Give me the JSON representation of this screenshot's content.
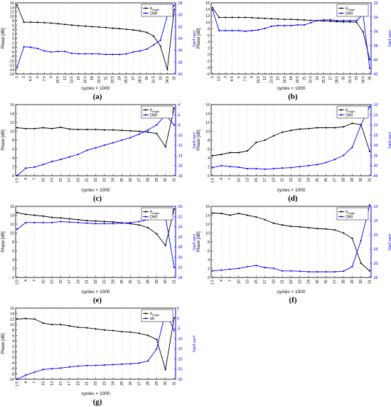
{
  "chart_data": [
    {
      "panel": "(a)",
      "type": "line",
      "xlabel": "cycles × 1000",
      "ylabel_left": "Phase [dB]",
      "ylabel_right": "DMI [dB]",
      "categories": [
        "0",
        "3",
        "4.5",
        "6",
        "7.5",
        "9",
        "10.5",
        "12",
        "13.5",
        "15",
        "16.5",
        "18",
        "19.5",
        "21",
        "22.5",
        "24",
        "25.5",
        "27",
        "28.5",
        "30",
        "31.5",
        "33",
        "34.5",
        "36"
      ],
      "ylim_left": [
        -16,
        16
      ],
      "yticks_left": [
        -16,
        -14,
        -12,
        -10,
        -8,
        -6,
        -4,
        -2,
        0,
        2,
        4,
        6,
        8,
        10,
        12,
        14,
        16
      ],
      "ylim_right": [
        -40,
        -28
      ],
      "yticks_right": [
        -40,
        -38,
        -36,
        -34,
        -32,
        -30,
        -28
      ],
      "legend_pos": "top-right",
      "series": [
        {
          "name": "θAngle",
          "axis": "left",
          "color": "#000000",
          "values": [
            15,
            7.3,
            7.3,
            7.2,
            7.1,
            6.9,
            6.6,
            6.3,
            6.0,
            5.7,
            5.5,
            5.3,
            5.1,
            4.9,
            4.6,
            4.4,
            4.1,
            3.8,
            3.4,
            2.7,
            1.0,
            -3.5,
            -14,
            13
          ]
        },
        {
          "name": "DMI",
          "axis": "right",
          "color": "#0000ff",
          "values": [
            -38.9,
            -35.4,
            -35.5,
            -35.7,
            -36.1,
            -36.3,
            -36.2,
            -36.2,
            -36.5,
            -36.6,
            -36.6,
            -36.6,
            -36.6,
            -36.7,
            -36.7,
            -36.7,
            -36.6,
            -36.3,
            -36.1,
            -35.8,
            -35.1,
            -34.3,
            -30.1,
            -28.4
          ]
        }
      ]
    },
    {
      "panel": "(b)",
      "type": "line",
      "xlabel": "cycles × 1000",
      "ylabel_left": "Phase [dB]",
      "ylabel_right": "DMI [dB]",
      "categories": [
        "0",
        "1.5",
        "3",
        "4.5",
        "6",
        "7.5",
        "9",
        "10.5",
        "12",
        "13.5",
        "15",
        "16.5",
        "18",
        "19.5",
        "21",
        "22.5",
        "24",
        "25.5",
        "27",
        "28.5",
        "30",
        "31.5",
        "33",
        "34.5",
        "36"
      ],
      "ylim_left": [
        -6,
        16
      ],
      "yticks_left": [
        -6,
        -4,
        -2,
        0,
        2,
        4,
        6,
        8,
        10,
        12,
        14,
        16
      ],
      "ylim_right": [
        -42,
        -32
      ],
      "yticks_right": [
        -42,
        -40,
        -38,
        -36,
        -34,
        -32
      ],
      "legend_pos": "top-right",
      "series": [
        {
          "name": "θAngle",
          "axis": "left",
          "color": "#000000",
          "values": [
            14.5,
            11.5,
            11.5,
            11.5,
            11.5,
            11.5,
            11.4,
            11.3,
            11.2,
            11.1,
            11.0,
            10.9,
            10.9,
            10.8,
            10.7,
            10.6,
            10.5,
            10.4,
            10.3,
            10.2,
            10.1,
            10.1,
            10.0,
            7.0,
            -1.5
          ]
        },
        {
          "name": "DMI",
          "axis": "right",
          "color": "#0000ff",
          "values": [
            -33.0,
            -35.9,
            -35.9,
            -35.9,
            -35.9,
            -36.0,
            -35.9,
            -35.8,
            -35.6,
            -35.3,
            -35.2,
            -35.2,
            -35.2,
            -35.1,
            -35.1,
            -34.8,
            -34.5,
            -34.4,
            -34.4,
            -34.5,
            -34.5,
            -34.5,
            -34.5,
            -33.6,
            -41.2
          ]
        }
      ]
    },
    {
      "panel": "(c)",
      "type": "line",
      "xlabel": "cycles × 1000",
      "ylabel_left": "Phase [dB]",
      "ylabel_right": "DMI [dB]",
      "categories": [
        "1.5",
        "4",
        "7",
        "10",
        "13",
        "15",
        "17",
        "19",
        "21",
        "22",
        "23",
        "24",
        "25",
        "26",
        "27",
        "28",
        "29",
        "30",
        "31"
      ],
      "ylim_left": [
        0,
        16
      ],
      "yticks_left": [
        0,
        2,
        4,
        6,
        8,
        10,
        12,
        14,
        16
      ],
      "ylim_right": [
        -18,
        -4
      ],
      "yticks_right": [
        -18,
        -16,
        -14,
        -12,
        -10,
        -8,
        -6,
        -4
      ],
      "legend_pos": "top-right",
      "series": [
        {
          "name": "θAngle",
          "axis": "left",
          "color": "#000000",
          "values": [
            10.8,
            10.6,
            10.6,
            10.8,
            10.6,
            10.9,
            10.5,
            10.4,
            10.4,
            10.4,
            10.3,
            10.3,
            10.2,
            10.1,
            10.0,
            9.8,
            9.5,
            6.5,
            15.2
          ]
        },
        {
          "name": "DMI",
          "axis": "right",
          "color": "#0000ff",
          "values": [
            -18,
            -16.5,
            -16.3,
            -15.8,
            -15.2,
            -14.8,
            -14.3,
            -13.8,
            -13.0,
            -12.5,
            -12.0,
            -11.5,
            -11.0,
            -10.5,
            -9.8,
            -9.0,
            -8.0,
            -6.0,
            -8.0
          ]
        }
      ]
    },
    {
      "panel": "(d)",
      "type": "line",
      "xlabel": "cycles × 1000",
      "ylabel_left": "Phase [dB]",
      "ylabel_right": "DMI [dB]",
      "categories": [
        "1.5",
        "4",
        "7",
        "10",
        "13",
        "15",
        "17",
        "19",
        "21",
        "22",
        "23",
        "24",
        "25",
        "26",
        "27",
        "28",
        "29",
        "30",
        "31"
      ],
      "ylim_left": [
        0,
        16
      ],
      "yticks_left": [
        0,
        2,
        4,
        6,
        8,
        10,
        12,
        14,
        16
      ],
      "ylim_right": [
        -45,
        -10
      ],
      "yticks_right": [
        -45,
        -40,
        -35,
        -30,
        -25,
        -20,
        -15,
        -10
      ],
      "legend_pos": "top-right",
      "series": [
        {
          "name": "θAngle",
          "axis": "left",
          "color": "#000000",
          "values": [
            4.5,
            4.8,
            5.2,
            5.2,
            5.6,
            7.5,
            8.0,
            9.0,
            9.8,
            10.2,
            10.5,
            10.6,
            10.8,
            10.8,
            10.8,
            11.0,
            11.8,
            11.5,
            5.5
          ]
        },
        {
          "name": "DMI",
          "axis": "right",
          "color": "#0000ff",
          "values": [
            -41,
            -40,
            -40.5,
            -40.8,
            -41.5,
            -41.5,
            -41.8,
            -41.5,
            -41.2,
            -41,
            -40.5,
            -40,
            -39.5,
            -38.5,
            -37,
            -35,
            -31,
            -20,
            -11
          ]
        }
      ]
    },
    {
      "panel": "(e)",
      "type": "line",
      "xlabel": "cycles × 1000",
      "ylabel_left": "Phase [dB]",
      "ylabel_right": "DMI [dB]",
      "categories": [
        "1.5",
        "4",
        "7",
        "10",
        "13",
        "15",
        "17",
        "19",
        "21",
        "22",
        "23",
        "24",
        "25",
        "26",
        "27",
        "28",
        "29",
        "30",
        "31"
      ],
      "ylim_left": [
        0,
        16
      ],
      "yticks_left": [
        0,
        2,
        4,
        6,
        8,
        10,
        12,
        14,
        16
      ],
      "ylim_right": [
        -34,
        -20
      ],
      "yticks_right": [
        -34,
        -32,
        -30,
        -28,
        -26,
        -24,
        -22,
        -20
      ],
      "legend_pos": "top-right",
      "series": [
        {
          "name": "θAngle",
          "axis": "left",
          "color": "#000000",
          "values": [
            14.6,
            14.2,
            14.0,
            13.8,
            13.5,
            13.4,
            13.2,
            13.0,
            12.8,
            12.7,
            12.6,
            12.5,
            12.3,
            12.1,
            11.8,
            11.2,
            9.8,
            7.2,
            15.4
          ]
        },
        {
          "name": "DMI",
          "axis": "right",
          "color": "#0000ff",
          "values": [
            -24.5,
            -23.2,
            -23.2,
            -23.2,
            -23.2,
            -23.0,
            -23.1,
            -23.2,
            -23.3,
            -23.4,
            -23.4,
            -23.4,
            -23.3,
            -23.2,
            -23.0,
            -22.6,
            -22.2,
            -22.0,
            -32.0
          ]
        }
      ]
    },
    {
      "panel": "(f)",
      "type": "line",
      "xlabel": "cycles × 1000",
      "ylabel_left": "Phase [dB]",
      "ylabel_right": "DMI [dB]",
      "categories": [
        "1.5",
        "4",
        "7",
        "10",
        "13",
        "15",
        "17",
        "19",
        "21",
        "22",
        "23",
        "24",
        "25",
        "26",
        "27",
        "28",
        "29",
        "30",
        "31"
      ],
      "ylim_left": [
        0,
        16
      ],
      "yticks_left": [
        0,
        2,
        4,
        6,
        8,
        10,
        12,
        14,
        16
      ],
      "ylim_right": [
        -35,
        -10
      ],
      "yticks_right": [
        -35,
        -30,
        -25,
        -20,
        -15,
        -10
      ],
      "legend_pos": "top-right",
      "series": [
        {
          "name": "θAngle",
          "axis": "left",
          "color": "#000000",
          "values": [
            14.5,
            14.4,
            14.0,
            14.4,
            14.0,
            13.6,
            13.0,
            12.2,
            11.8,
            11.5,
            11.4,
            11.2,
            11.0,
            10.9,
            10.7,
            10.0,
            8.8,
            3.2,
            1.5
          ]
        },
        {
          "name": "DMI",
          "axis": "right",
          "color": "#0000ff",
          "values": [
            -32.7,
            -32.4,
            -32.1,
            -31.8,
            -31.2,
            -30.8,
            -31.5,
            -31.8,
            -32.7,
            -32.7,
            -32.8,
            -33.0,
            -33.0,
            -33.0,
            -33.0,
            -32.8,
            -31.2,
            -22.0,
            -9.5
          ]
        }
      ]
    },
    {
      "panel": "(g)",
      "type": "line",
      "xlabel": "cycles × 1000",
      "ylabel_left": "Phase [dB]",
      "ylabel_right": "DMI [dB]",
      "categories": [
        "1.5",
        "4",
        "7",
        "10",
        "13",
        "15",
        "17",
        "19",
        "21",
        "22",
        "23",
        "24",
        "25",
        "26",
        "27",
        "28",
        "29",
        "30",
        "31"
      ],
      "ylim_left": [
        -10,
        16
      ],
      "yticks_left": [
        -10,
        -8,
        -6,
        -4,
        -2,
        0,
        2,
        4,
        6,
        8,
        10,
        12,
        14,
        16
      ],
      "ylim_right": [
        -30,
        5
      ],
      "yticks_right": [
        -30,
        -25,
        -20,
        -15,
        -10,
        -5,
        0,
        5
      ],
      "legend_pos": "top-right",
      "series": [
        {
          "name": "θAngle",
          "axis": "left",
          "color": "#000000",
          "values": [
            12.0,
            12.2,
            12.0,
            10.5,
            10.0,
            10.0,
            9.5,
            9.0,
            8.8,
            8.4,
            8.0,
            7.8,
            7.4,
            7.2,
            6.8,
            6.0,
            4.5,
            -6.5,
            12.5
          ]
        },
        {
          "name": "MI",
          "axis": "right",
          "color": "#0000ff",
          "values": [
            -30,
            -28,
            -26.5,
            -25.2,
            -24.8,
            -24.5,
            -24,
            -23.5,
            -23.3,
            -23.2,
            -23,
            -22.8,
            -22.6,
            -22.4,
            -22,
            -21,
            -15,
            3,
            -6
          ]
        }
      ]
    }
  ]
}
